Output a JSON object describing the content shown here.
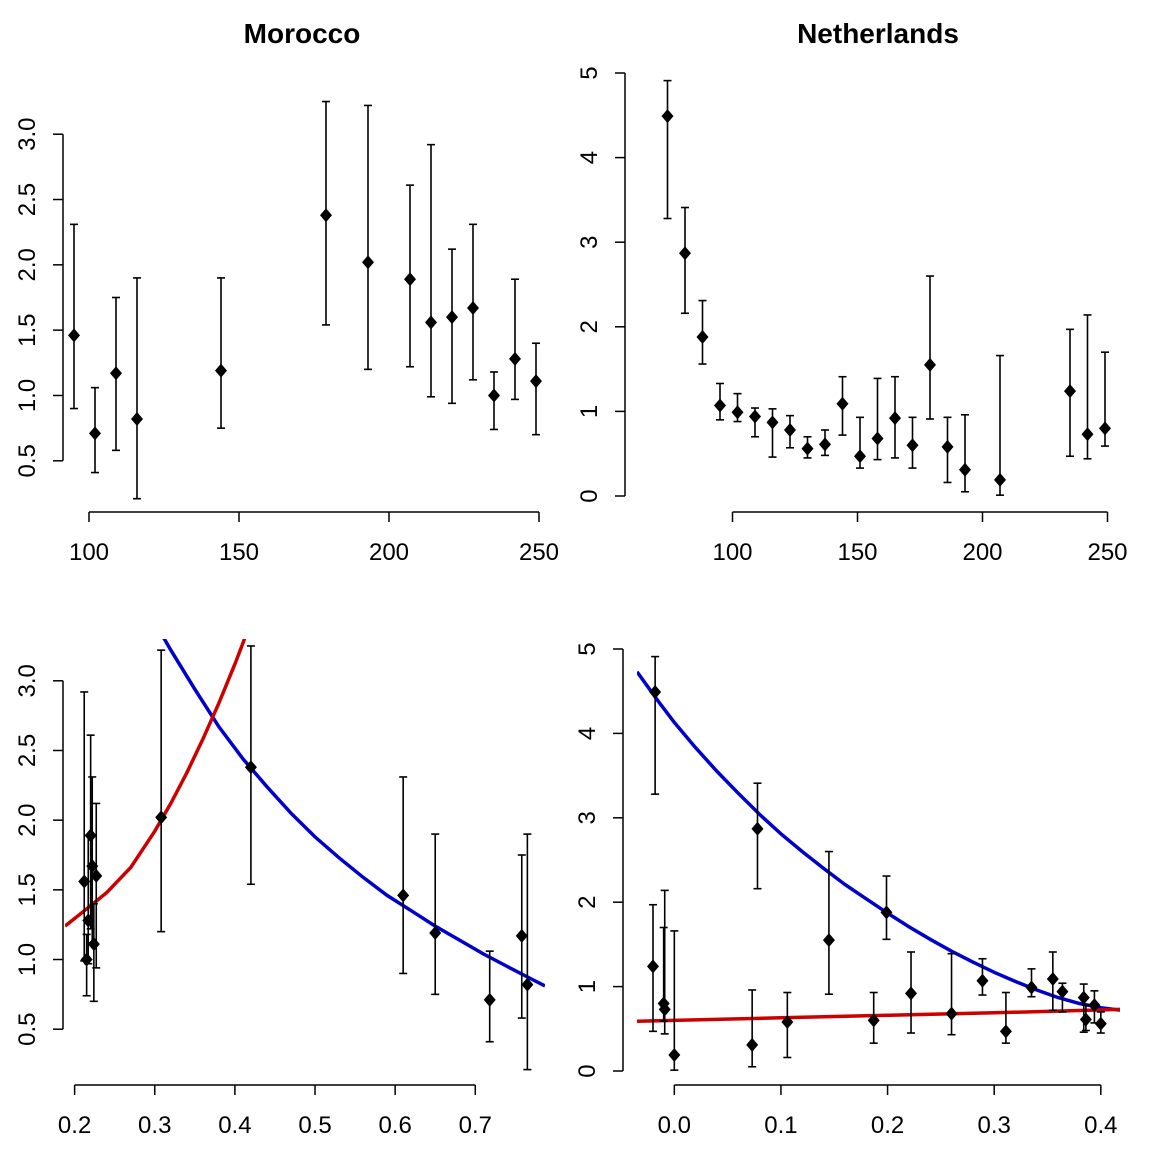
{
  "chart_data": [
    {
      "type": "scatter",
      "title": "Morocco",
      "xlabel": "",
      "ylabel": "",
      "xlim": [
        92,
        252
      ],
      "ylim": [
        0.2,
        3.3
      ],
      "x_ticks": [
        100,
        150,
        200,
        250
      ],
      "y_ticks": [
        0.5,
        1.0,
        1.5,
        2.0,
        2.5,
        3.0
      ],
      "x_tick_labels": [
        "100",
        "150",
        "200",
        "250"
      ],
      "y_tick_labels": [
        "0.5",
        "1.0",
        "1.5",
        "2.0",
        "2.5",
        "3.0"
      ],
      "point_color": "#000000",
      "points": [
        {
          "x": 95,
          "y": 1.46,
          "lo": 0.9,
          "hi": 2.31
        },
        {
          "x": 102,
          "y": 0.71,
          "lo": 0.41,
          "hi": 1.06
        },
        {
          "x": 109,
          "y": 1.17,
          "lo": 0.58,
          "hi": 1.75
        },
        {
          "x": 116,
          "y": 0.82,
          "lo": 0.21,
          "hi": 1.9
        },
        {
          "x": 144,
          "y": 1.19,
          "lo": 0.75,
          "hi": 1.9
        },
        {
          "x": 179,
          "y": 2.38,
          "lo": 1.54,
          "hi": 3.25
        },
        {
          "x": 193,
          "y": 2.02,
          "lo": 1.2,
          "hi": 3.22
        },
        {
          "x": 207,
          "y": 1.89,
          "lo": 1.22,
          "hi": 2.61
        },
        {
          "x": 214,
          "y": 1.56,
          "lo": 0.99,
          "hi": 2.92
        },
        {
          "x": 221,
          "y": 1.6,
          "lo": 0.94,
          "hi": 2.12
        },
        {
          "x": 228,
          "y": 1.67,
          "lo": 1.12,
          "hi": 2.31
        },
        {
          "x": 235,
          "y": 1.0,
          "lo": 0.74,
          "hi": 1.18
        },
        {
          "x": 242,
          "y": 1.28,
          "lo": 0.97,
          "hi": 1.89
        },
        {
          "x": 249,
          "y": 1.11,
          "lo": 0.7,
          "hi": 1.4
        }
      ]
    },
    {
      "type": "scatter",
      "title": "Netherlands",
      "xlabel": "",
      "ylabel": "",
      "xlim": [
        65,
        255
      ],
      "ylim": [
        0,
        5
      ],
      "x_ticks": [
        100,
        150,
        200,
        250
      ],
      "y_ticks": [
        0,
        1,
        2,
        3,
        4,
        5
      ],
      "x_tick_labels": [
        "100",
        "150",
        "200",
        "250"
      ],
      "y_tick_labels": [
        "0",
        "1",
        "2",
        "3",
        "4",
        "5"
      ],
      "point_color": "#000000",
      "points": [
        {
          "x": 74,
          "y": 4.49,
          "lo": 3.28,
          "hi": 4.91
        },
        {
          "x": 81,
          "y": 2.87,
          "lo": 2.16,
          "hi": 3.41
        },
        {
          "x": 88,
          "y": 1.88,
          "lo": 1.56,
          "hi": 2.31
        },
        {
          "x": 95,
          "y": 1.07,
          "lo": 0.9,
          "hi": 1.33
        },
        {
          "x": 102,
          "y": 0.99,
          "lo": 0.88,
          "hi": 1.21
        },
        {
          "x": 109,
          "y": 0.94,
          "lo": 0.7,
          "hi": 1.04
        },
        {
          "x": 116,
          "y": 0.87,
          "lo": 0.46,
          "hi": 1.03
        },
        {
          "x": 123,
          "y": 0.78,
          "lo": 0.57,
          "hi": 0.95
        },
        {
          "x": 130,
          "y": 0.56,
          "lo": 0.45,
          "hi": 0.7
        },
        {
          "x": 137,
          "y": 0.61,
          "lo": 0.48,
          "hi": 0.78
        },
        {
          "x": 144,
          "y": 1.09,
          "lo": 0.72,
          "hi": 1.41
        },
        {
          "x": 151,
          "y": 0.47,
          "lo": 0.33,
          "hi": 0.93
        },
        {
          "x": 158,
          "y": 0.68,
          "lo": 0.43,
          "hi": 1.39
        },
        {
          "x": 165,
          "y": 0.92,
          "lo": 0.45,
          "hi": 1.41
        },
        {
          "x": 172,
          "y": 0.6,
          "lo": 0.33,
          "hi": 0.93
        },
        {
          "x": 179,
          "y": 1.55,
          "lo": 0.91,
          "hi": 2.6
        },
        {
          "x": 186,
          "y": 0.58,
          "lo": 0.16,
          "hi": 0.93
        },
        {
          "x": 193,
          "y": 0.31,
          "lo": 0.05,
          "hi": 0.96
        },
        {
          "x": 207,
          "y": 0.19,
          "lo": 0.01,
          "hi": 1.66
        },
        {
          "x": 235,
          "y": 1.24,
          "lo": 0.47,
          "hi": 1.97
        },
        {
          "x": 242,
          "y": 0.73,
          "lo": 0.44,
          "hi": 2.14
        },
        {
          "x": 249,
          "y": 0.8,
          "lo": 0.59,
          "hi": 1.7
        }
      ]
    },
    {
      "type": "scatter",
      "title": "",
      "xlabel": "",
      "ylabel": "",
      "xlim": [
        0.188,
        0.787
      ],
      "ylim": [
        0.2,
        3.3
      ],
      "x_ticks": [
        0.2,
        0.3,
        0.4,
        0.5,
        0.6,
        0.7
      ],
      "y_ticks": [
        0.5,
        1.0,
        1.5,
        2.0,
        2.5,
        3.0
      ],
      "x_tick_labels": [
        "0.2",
        "0.3",
        "0.4",
        "0.5",
        "0.6",
        "0.7"
      ],
      "y_tick_labels": [
        "0.5",
        "1.0",
        "1.5",
        "2.0",
        "2.5",
        "3.0"
      ],
      "point_color": "#000000",
      "points": [
        {
          "x": 0.212,
          "y": 1.56,
          "lo": 0.99,
          "hi": 2.92
        },
        {
          "x": 0.215,
          "y": 1.0,
          "lo": 0.74,
          "hi": 1.18
        },
        {
          "x": 0.217,
          "y": 1.28,
          "lo": 0.97,
          "hi": 1.89
        },
        {
          "x": 0.22,
          "y": 1.89,
          "lo": 1.22,
          "hi": 2.61
        },
        {
          "x": 0.222,
          "y": 1.67,
          "lo": 1.12,
          "hi": 2.31
        },
        {
          "x": 0.224,
          "y": 1.11,
          "lo": 0.7,
          "hi": 1.4
        },
        {
          "x": 0.227,
          "y": 1.6,
          "lo": 0.94,
          "hi": 2.12
        },
        {
          "x": 0.308,
          "y": 2.02,
          "lo": 1.2,
          "hi": 3.22
        },
        {
          "x": 0.42,
          "y": 2.38,
          "lo": 1.54,
          "hi": 3.25
        },
        {
          "x": 0.61,
          "y": 1.46,
          "lo": 0.9,
          "hi": 2.31
        },
        {
          "x": 0.65,
          "y": 1.19,
          "lo": 0.75,
          "hi": 1.9
        },
        {
          "x": 0.718,
          "y": 0.71,
          "lo": 0.41,
          "hi": 1.06
        },
        {
          "x": 0.758,
          "y": 1.17,
          "lo": 0.58,
          "hi": 1.75
        },
        {
          "x": 0.765,
          "y": 0.82,
          "lo": 0.21,
          "hi": 1.9
        }
      ],
      "curves": [
        {
          "color": "#0000CD",
          "points": [
            [
              0.29,
              3.52
            ],
            [
              0.32,
              3.22
            ],
            [
              0.35,
              2.94
            ],
            [
              0.38,
              2.67
            ],
            [
              0.41,
              2.44
            ],
            [
              0.44,
              2.24
            ],
            [
              0.47,
              2.05
            ],
            [
              0.5,
              1.88
            ],
            [
              0.53,
              1.73
            ],
            [
              0.56,
              1.59
            ],
            [
              0.59,
              1.46
            ],
            [
              0.62,
              1.35
            ],
            [
              0.65,
              1.24
            ],
            [
              0.68,
              1.14
            ],
            [
              0.71,
              1.04
            ],
            [
              0.74,
              0.95
            ],
            [
              0.77,
              0.86
            ],
            [
              0.787,
              0.81
            ]
          ]
        },
        {
          "color": "#CD0000",
          "points": [
            [
              0.188,
              1.24
            ],
            [
              0.21,
              1.34
            ],
            [
              0.24,
              1.48
            ],
            [
              0.27,
              1.66
            ],
            [
              0.3,
              1.92
            ],
            [
              0.32,
              2.12
            ],
            [
              0.34,
              2.34
            ],
            [
              0.36,
              2.58
            ],
            [
              0.38,
              2.84
            ],
            [
              0.4,
              3.12
            ],
            [
              0.41,
              3.27
            ],
            [
              0.415,
              3.35
            ]
          ]
        }
      ]
    },
    {
      "type": "scatter",
      "title": "",
      "xlabel": "",
      "ylabel": "",
      "xlim": [
        -0.035,
        0.418
      ],
      "ylim": [
        0,
        5
      ],
      "x_ticks": [
        0.0,
        0.1,
        0.2,
        0.3,
        0.4
      ],
      "y_ticks": [
        0,
        1,
        2,
        3,
        4,
        5
      ],
      "x_tick_labels": [
        "0.0",
        "0.1",
        "0.2",
        "0.3",
        "0.4"
      ],
      "y_tick_labels": [
        "0",
        "1",
        "2",
        "3",
        "4",
        "5"
      ],
      "point_color": "#000000",
      "points": [
        {
          "x": -0.018,
          "y": 4.49,
          "lo": 3.28,
          "hi": 4.91
        },
        {
          "x": -0.02,
          "y": 1.24,
          "lo": 0.47,
          "hi": 1.97
        },
        {
          "x": -0.01,
          "y": 0.8,
          "lo": 0.59,
          "hi": 1.7
        },
        {
          "x": -0.009,
          "y": 0.73,
          "lo": 0.44,
          "hi": 2.14
        },
        {
          "x": 0.0,
          "y": 0.19,
          "lo": 0.01,
          "hi": 1.66
        },
        {
          "x": 0.073,
          "y": 0.31,
          "lo": 0.05,
          "hi": 0.96
        },
        {
          "x": 0.078,
          "y": 2.87,
          "lo": 2.16,
          "hi": 3.41
        },
        {
          "x": 0.106,
          "y": 0.58,
          "lo": 0.16,
          "hi": 0.93
        },
        {
          "x": 0.145,
          "y": 1.55,
          "lo": 0.91,
          "hi": 2.6
        },
        {
          "x": 0.187,
          "y": 0.6,
          "lo": 0.33,
          "hi": 0.93
        },
        {
          "x": 0.199,
          "y": 1.88,
          "lo": 1.56,
          "hi": 2.31
        },
        {
          "x": 0.222,
          "y": 0.92,
          "lo": 0.45,
          "hi": 1.41
        },
        {
          "x": 0.26,
          "y": 0.68,
          "lo": 0.43,
          "hi": 1.39
        },
        {
          "x": 0.289,
          "y": 1.07,
          "lo": 0.9,
          "hi": 1.33
        },
        {
          "x": 0.311,
          "y": 0.47,
          "lo": 0.33,
          "hi": 0.93
        },
        {
          "x": 0.335,
          "y": 0.99,
          "lo": 0.88,
          "hi": 1.21
        },
        {
          "x": 0.355,
          "y": 1.09,
          "lo": 0.72,
          "hi": 1.41
        },
        {
          "x": 0.364,
          "y": 0.94,
          "lo": 0.7,
          "hi": 1.04
        },
        {
          "x": 0.384,
          "y": 0.87,
          "lo": 0.46,
          "hi": 1.03
        },
        {
          "x": 0.386,
          "y": 0.61,
          "lo": 0.48,
          "hi": 0.78
        },
        {
          "x": 0.394,
          "y": 0.78,
          "lo": 0.57,
          "hi": 0.95
        },
        {
          "x": 0.4,
          "y": 0.56,
          "lo": 0.45,
          "hi": 0.7
        }
      ],
      "curves": [
        {
          "color": "#0000CD",
          "points": [
            [
              -0.035,
              4.73
            ],
            [
              -0.015,
              4.38
            ],
            [
              0.0,
              4.13
            ],
            [
              0.02,
              3.83
            ],
            [
              0.04,
              3.55
            ],
            [
              0.06,
              3.29
            ],
            [
              0.08,
              3.04
            ],
            [
              0.1,
              2.81
            ],
            [
              0.12,
              2.6
            ],
            [
              0.14,
              2.4
            ],
            [
              0.16,
              2.21
            ],
            [
              0.18,
              2.04
            ],
            [
              0.2,
              1.87
            ],
            [
              0.22,
              1.71
            ],
            [
              0.24,
              1.56
            ],
            [
              0.26,
              1.42
            ],
            [
              0.28,
              1.29
            ],
            [
              0.3,
              1.17
            ],
            [
              0.32,
              1.06
            ],
            [
              0.34,
              0.96
            ],
            [
              0.36,
              0.87
            ],
            [
              0.38,
              0.8
            ],
            [
              0.4,
              0.75
            ],
            [
              0.418,
              0.72
            ]
          ]
        },
        {
          "color": "#CD0000",
          "points": [
            [
              -0.035,
              0.59
            ],
            [
              0.1,
              0.63
            ],
            [
              0.2,
              0.66
            ],
            [
              0.3,
              0.69
            ],
            [
              0.418,
              0.73
            ]
          ]
        }
      ]
    }
  ]
}
